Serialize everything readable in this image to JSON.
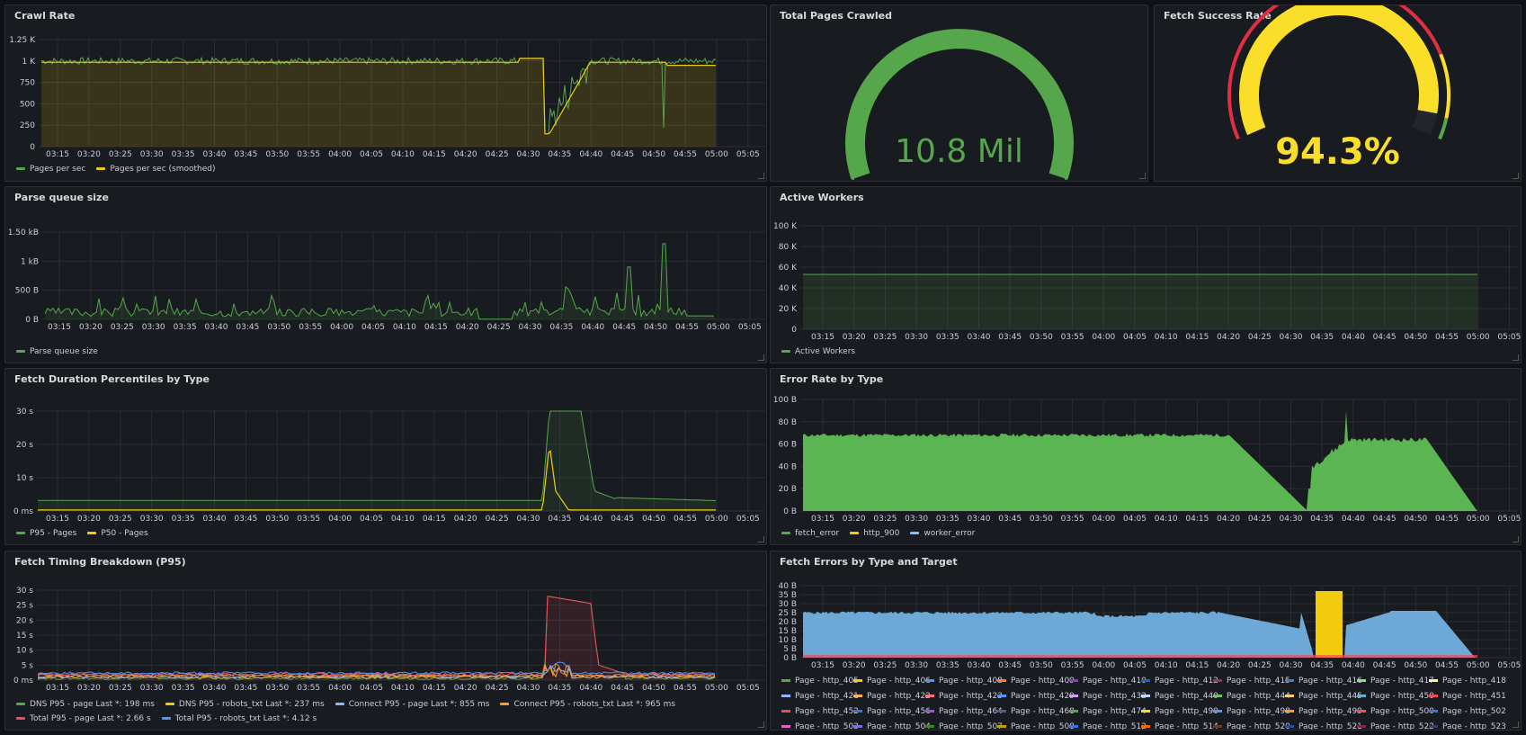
{
  "colors": {
    "green": "#56a64b",
    "yellow": "#f2cc0c",
    "blue": "#5794f2",
    "orange": "#ff9830",
    "red": "#f2495c",
    "lightblue": "#8ab8ff",
    "gaugeRed": "#e02f44",
    "gaugeYellow": "#fade2a",
    "grid": "#2a2d33",
    "axis": "#ccccdc"
  },
  "time_ticks": [
    "03:15",
    "03:20",
    "03:25",
    "03:30",
    "03:35",
    "03:40",
    "03:45",
    "03:50",
    "03:55",
    "04:00",
    "04:05",
    "04:10",
    "04:15",
    "04:20",
    "04:25",
    "04:30",
    "04:35",
    "04:40",
    "04:45",
    "04:50",
    "04:55",
    "05:00",
    "05:05"
  ],
  "panels": {
    "crawl_rate": {
      "title": "Crawl Rate",
      "yticks": [
        "0",
        "250",
        "500",
        "750",
        "1 K",
        "1.25 K"
      ],
      "legend": [
        {
          "name": "Pages per sec",
          "color": "#56a64b"
        },
        {
          "name": "Pages per sec (smoothed)",
          "color": "#f2cc0c"
        }
      ]
    },
    "total_pages": {
      "title": "Total Pages Crawled",
      "value": "10.8 Mil"
    },
    "fetch_success": {
      "title": "Fetch Success Rate",
      "value": "94.3%",
      "fraction": 0.943
    },
    "parse_queue": {
      "title": "Parse queue size",
      "yticks": [
        "0 B",
        "500 B",
        "1 kB",
        "1.50 kB"
      ],
      "legend": [
        {
          "name": "Parse queue size",
          "color": "#56a64b"
        }
      ]
    },
    "active_workers": {
      "title": "Active Workers",
      "yticks": [
        "0",
        "20 K",
        "40 K",
        "60 K",
        "80 K",
        "100 K"
      ],
      "legend": [
        {
          "name": "Active Workers",
          "color": "#56a64b"
        }
      ]
    },
    "fetch_duration": {
      "title": "Fetch Duration Percentiles by Type",
      "yticks": [
        "0 ms",
        "10 s",
        "20 s",
        "30 s"
      ],
      "legend": [
        {
          "name": "P95 - Pages",
          "color": "#56a64b"
        },
        {
          "name": "P50 - Pages",
          "color": "#f2cc0c"
        }
      ]
    },
    "error_rate": {
      "title": "Error Rate by Type",
      "yticks": [
        "0 B",
        "20 B",
        "40 B",
        "60 B",
        "80 B",
        "100 B"
      ],
      "legend": [
        {
          "name": "fetch_error",
          "color": "#56a64b"
        },
        {
          "name": "http_900",
          "color": "#f2cc0c"
        },
        {
          "name": "worker_error",
          "color": "#8ab8ff"
        }
      ]
    },
    "fetch_timing": {
      "title": "Fetch Timing Breakdown (P95)",
      "yticks": [
        "0 ms",
        "5 s",
        "10 s",
        "15 s",
        "20 s",
        "25 s",
        "30 s"
      ],
      "legend": [
        {
          "name": "DNS P95 - page  Last *: 198 ms",
          "color": "#56a64b"
        },
        {
          "name": "DNS P95 - robots_txt  Last *: 237 ms",
          "color": "#f2cc0c"
        },
        {
          "name": "Connect P95 - page  Last *: 855 ms",
          "color": "#8ab8ff"
        },
        {
          "name": "Connect P95 - robots_txt  Last *: 965 ms",
          "color": "#ff9830"
        },
        {
          "name": "Total P95 - page  Last *: 2.66 s",
          "color": "#f2495c"
        },
        {
          "name": "Total P95 - robots_txt  Last *: 4.12 s",
          "color": "#5794f2"
        }
      ]
    },
    "fetch_errors": {
      "title": "Fetch Errors by Type and Target",
      "yticks": [
        "0 B",
        "5 B",
        "10 B",
        "15 B",
        "20 B",
        "25 B",
        "30 B",
        "35 B",
        "40 B"
      ],
      "legend": [
        [
          {
            "name": "Page - http_405",
            "color": "#56a64b"
          },
          {
            "name": "Page - http_406",
            "color": "#f2cc0c"
          },
          {
            "name": "Page - http_408",
            "color": "#5794f2"
          },
          {
            "name": "Page - http_409",
            "color": "#ff7b2e"
          },
          {
            "name": "Page - http_410",
            "color": "#8f3bb8"
          },
          {
            "name": "Page - http_412",
            "color": "#1f60c4"
          },
          {
            "name": "Page - http_415",
            "color": "#8a3a57"
          },
          {
            "name": "Page - http_416",
            "color": "#447ebc"
          },
          {
            "name": "Page - http_417",
            "color": "#96d98d"
          },
          {
            "name": "Page - http_418",
            "color": "#fff899"
          }
        ],
        [
          {
            "name": "Page - http_421",
            "color": "#8ab8ff"
          },
          {
            "name": "Page - http_422",
            "color": "#ffb357"
          },
          {
            "name": "Page - http_423",
            "color": "#ff7383"
          },
          {
            "name": "Page - http_429",
            "color": "#5794f2"
          },
          {
            "name": "Page - http_432",
            "color": "#caa1f5"
          },
          {
            "name": "Page - http_440",
            "color": "#c0d8ff"
          },
          {
            "name": "Page - http_444",
            "color": "#73bf69"
          },
          {
            "name": "Page - http_445",
            "color": "#ffcb7d"
          },
          {
            "name": "Page - http_450",
            "color": "#64b0c8"
          },
          {
            "name": "Page - http_451",
            "color": "#f2495c"
          }
        ],
        [
          {
            "name": "Page - http_452",
            "color": "#f2495c"
          },
          {
            "name": "Page - http_456",
            "color": "#3274d9"
          },
          {
            "name": "Page - http_464",
            "color": "#a352cc"
          },
          {
            "name": "Page - http_468",
            "color": "#4e5f8a"
          },
          {
            "name": "Page - http_474",
            "color": "#56a64b"
          },
          {
            "name": "Page - http_490",
            "color": "#fade2a"
          },
          {
            "name": "Page - http_498",
            "color": "#5794f2"
          },
          {
            "name": "Page - http_499",
            "color": "#ff9830"
          },
          {
            "name": "Page - http_500",
            "color": "#f2495c"
          },
          {
            "name": "Page - http_502",
            "color": "#3d71d9"
          }
        ],
        [
          {
            "name": "Page - http_503",
            "color": "#e55fd0"
          },
          {
            "name": "Page - http_504",
            "color": "#7b6ed6"
          },
          {
            "name": "Page - http_507",
            "color": "#37872d"
          },
          {
            "name": "Page - http_508",
            "color": "#c4a000"
          },
          {
            "name": "Page - http_512",
            "color": "#3d71d9"
          },
          {
            "name": "Page - http_514",
            "color": "#fa6400"
          },
          {
            "name": "Page - http_520",
            "color": "#6b3a2a"
          },
          {
            "name": "Page - http_521",
            "color": "#2a4d8f"
          },
          {
            "name": "Page - http_522",
            "color": "#7a2c4f"
          },
          {
            "name": "Page - http_523",
            "color": "#3a3f66"
          }
        ]
      ]
    }
  }
}
